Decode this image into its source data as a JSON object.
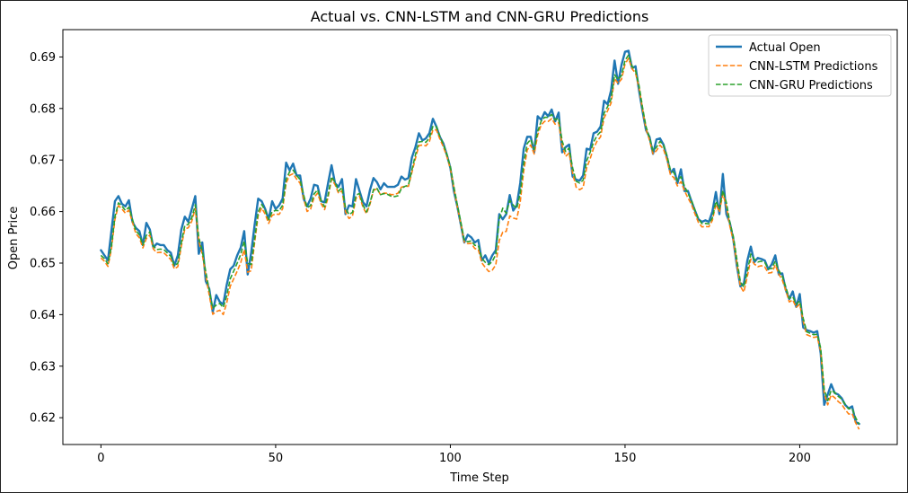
{
  "chart_data": {
    "type": "line",
    "title": "Actual vs. CNN-LSTM and CNN-GRU Predictions",
    "xlabel": "Time Step",
    "ylabel": "Open Price",
    "xlim": [
      -10.9,
      227.9
    ],
    "ylim": [
      0.6148,
      0.6953
    ],
    "x_ticks": [
      0,
      50,
      100,
      150,
      200
    ],
    "y_ticks": [
      0.62,
      0.63,
      0.64,
      0.65,
      0.66,
      0.67,
      0.68,
      0.69
    ],
    "legend_position": "upper-right",
    "grid": false,
    "series": [
      {
        "name": "Actual Open",
        "color": "#1f77b4",
        "style": "solid",
        "keypoints": [
          [
            0,
            0.6525
          ],
          [
            2,
            0.6505
          ],
          [
            4,
            0.662
          ],
          [
            5,
            0.663
          ],
          [
            6,
            0.6615
          ],
          [
            7,
            0.661
          ],
          [
            8,
            0.6622
          ],
          [
            9,
            0.658
          ],
          [
            10,
            0.6568
          ],
          [
            11,
            0.6562
          ],
          [
            12,
            0.6535
          ],
          [
            13,
            0.6578
          ],
          [
            14,
            0.6565
          ],
          [
            15,
            0.653
          ],
          [
            16,
            0.6538
          ],
          [
            17,
            0.6535
          ],
          [
            18,
            0.6535
          ],
          [
            19,
            0.6525
          ],
          [
            20,
            0.652
          ],
          [
            21,
            0.6495
          ],
          [
            22,
            0.6515
          ],
          [
            23,
            0.6565
          ],
          [
            24,
            0.659
          ],
          [
            25,
            0.658
          ],
          [
            26,
            0.6605
          ],
          [
            27,
            0.663
          ],
          [
            28,
            0.6518
          ],
          [
            29,
            0.654
          ],
          [
            30,
            0.6465
          ],
          [
            31,
            0.645
          ],
          [
            32,
            0.6405
          ],
          [
            33,
            0.6438
          ],
          [
            34,
            0.6425
          ],
          [
            35,
            0.642
          ],
          [
            36,
            0.6458
          ],
          [
            37,
            0.6488
          ],
          [
            38,
            0.6495
          ],
          [
            39,
            0.6515
          ],
          [
            40,
            0.653
          ],
          [
            41,
            0.6562
          ],
          [
            42,
            0.6478
          ],
          [
            43,
            0.652
          ],
          [
            44,
            0.6575
          ],
          [
            45,
            0.6625
          ],
          [
            46,
            0.662
          ],
          [
            47,
            0.6605
          ],
          [
            48,
            0.6585
          ],
          [
            49,
            0.662
          ],
          [
            50,
            0.6605
          ],
          [
            51,
            0.6612
          ],
          [
            52,
            0.6625
          ],
          [
            53,
            0.6695
          ],
          [
            54,
            0.668
          ],
          [
            55,
            0.6693
          ],
          [
            56,
            0.667
          ],
          [
            57,
            0.667
          ],
          [
            58,
            0.6625
          ],
          [
            59,
            0.661
          ],
          [
            60,
            0.6625
          ],
          [
            61,
            0.6652
          ],
          [
            62,
            0.665
          ],
          [
            63,
            0.662
          ],
          [
            64,
            0.6618
          ],
          [
            65,
            0.6655
          ],
          [
            66,
            0.669
          ],
          [
            67,
            0.6655
          ],
          [
            68,
            0.6648
          ],
          [
            69,
            0.6663
          ],
          [
            70,
            0.6595
          ],
          [
            71,
            0.6612
          ],
          [
            72,
            0.661
          ],
          [
            73,
            0.6663
          ],
          [
            74,
            0.664
          ],
          [
            75,
            0.6618
          ],
          [
            76,
            0.661
          ],
          [
            77,
            0.6642
          ],
          [
            78,
            0.6665
          ],
          [
            79,
            0.6657
          ],
          [
            80,
            0.6643
          ],
          [
            81,
            0.6655
          ],
          [
            82,
            0.6648
          ],
          [
            83,
            0.6648
          ],
          [
            84,
            0.6648
          ],
          [
            85,
            0.6652
          ],
          [
            86,
            0.6668
          ],
          [
            87,
            0.6662
          ],
          [
            88,
            0.6665
          ],
          [
            89,
            0.6705
          ],
          [
            90,
            0.6725
          ],
          [
            91,
            0.6752
          ],
          [
            92,
            0.6738
          ],
          [
            93,
            0.6742
          ],
          [
            94,
            0.6752
          ],
          [
            95,
            0.678
          ],
          [
            96,
            0.6765
          ],
          [
            97,
            0.6745
          ],
          [
            98,
            0.6732
          ],
          [
            99,
            0.671
          ],
          [
            100,
            0.6685
          ],
          [
            101,
            0.664
          ],
          [
            102,
            0.661
          ],
          [
            103,
            0.6575
          ],
          [
            104,
            0.654
          ],
          [
            105,
            0.6555
          ],
          [
            106,
            0.655
          ],
          [
            107,
            0.654
          ],
          [
            108,
            0.6545
          ],
          [
            109,
            0.6505
          ],
          [
            110,
            0.6515
          ],
          [
            111,
            0.65
          ],
          [
            112,
            0.6515
          ],
          [
            113,
            0.6525
          ],
          [
            114,
            0.6595
          ],
          [
            115,
            0.6585
          ],
          [
            116,
            0.6595
          ],
          [
            117,
            0.6632
          ],
          [
            118,
            0.6602
          ],
          [
            119,
            0.6612
          ],
          [
            120,
            0.6655
          ],
          [
            121,
            0.6722
          ],
          [
            122,
            0.6745
          ],
          [
            123,
            0.6745
          ],
          [
            124,
            0.6715
          ],
          [
            125,
            0.6785
          ],
          [
            126,
            0.6778
          ],
          [
            127,
            0.6793
          ],
          [
            128,
            0.6785
          ],
          [
            129,
            0.6798
          ],
          [
            130,
            0.6775
          ],
          [
            131,
            0.6792
          ],
          [
            132,
            0.6715
          ],
          [
            133,
            0.6725
          ],
          [
            134,
            0.673
          ],
          [
            135,
            0.6668
          ],
          [
            136,
            0.6662
          ],
          [
            137,
            0.666
          ],
          [
            138,
            0.667
          ],
          [
            139,
            0.6722
          ],
          [
            140,
            0.672
          ],
          [
            141,
            0.6752
          ],
          [
            142,
            0.6755
          ],
          [
            143,
            0.6765
          ],
          [
            144,
            0.6815
          ],
          [
            145,
            0.6808
          ],
          [
            146,
            0.6835
          ],
          [
            147,
            0.6893
          ],
          [
            148,
            0.6848
          ],
          [
            149,
            0.6885
          ],
          [
            150,
            0.691
          ],
          [
            151,
            0.6912
          ],
          [
            152,
            0.6878
          ],
          [
            153,
            0.6882
          ],
          [
            154,
            0.6835
          ],
          [
            155,
            0.6795
          ],
          [
            156,
            0.6758
          ],
          [
            157,
            0.6745
          ],
          [
            158,
            0.6712
          ],
          [
            159,
            0.674
          ],
          [
            160,
            0.6742
          ],
          [
            161,
            0.673
          ],
          [
            162,
            0.6705
          ],
          [
            163,
            0.6675
          ],
          [
            164,
            0.6683
          ],
          [
            165,
            0.6655
          ],
          [
            166,
            0.6682
          ],
          [
            167,
            0.664
          ],
          [
            168,
            0.664
          ],
          [
            169,
            0.662
          ],
          [
            170,
            0.6602
          ],
          [
            171,
            0.6585
          ],
          [
            172,
            0.658
          ],
          [
            173,
            0.6583
          ],
          [
            174,
            0.658
          ],
          [
            175,
            0.66
          ],
          [
            176,
            0.6638
          ],
          [
            177,
            0.6595
          ],
          [
            178,
            0.6673
          ],
          [
            179,
            0.6595
          ],
          [
            180,
            0.6578
          ],
          [
            181,
            0.6545
          ],
          [
            182,
            0.6495
          ],
          [
            183,
            0.6455
          ],
          [
            184,
            0.646
          ],
          [
            185,
            0.6505
          ],
          [
            186,
            0.6532
          ],
          [
            187,
            0.6502
          ],
          [
            188,
            0.651
          ],
          [
            189,
            0.6508
          ],
          [
            190,
            0.6505
          ],
          [
            191,
            0.6488
          ],
          [
            192,
            0.6498
          ],
          [
            193,
            0.6515
          ],
          [
            194,
            0.6478
          ],
          [
            195,
            0.648
          ],
          [
            196,
            0.6448
          ],
          [
            197,
            0.643
          ],
          [
            198,
            0.6445
          ],
          [
            199,
            0.6415
          ],
          [
            200,
            0.644
          ],
          [
            201,
            0.6375
          ],
          [
            202,
            0.637
          ],
          [
            203,
            0.6368
          ],
          [
            204,
            0.6365
          ],
          [
            205,
            0.6368
          ],
          [
            206,
            0.6325
          ],
          [
            207,
            0.6225
          ],
          [
            208,
            0.6245
          ],
          [
            209,
            0.6265
          ],
          [
            210,
            0.6248
          ],
          [
            211,
            0.6245
          ],
          [
            212,
            0.6238
          ],
          [
            213,
            0.6225
          ],
          [
            214,
            0.6218
          ],
          [
            215,
            0.6222
          ],
          [
            216,
            0.6192
          ],
          [
            217,
            0.6188
          ]
        ]
      },
      {
        "name": "CNN-LSTM Predictions",
        "color": "#ff7f0e",
        "style": "dashed",
        "offsets": [
          [
            0,
            -0.0015
          ],
          [
            30,
            -0.0015
          ],
          [
            32,
            -0.002
          ],
          [
            42,
            -0.0025
          ],
          [
            44,
            -0.0015
          ],
          [
            60,
            -0.0015
          ],
          [
            68,
            -0.0015
          ],
          [
            70,
            -0.002
          ],
          [
            80,
            -0.0015
          ],
          [
            90,
            -0.0015
          ],
          [
            95,
            -0.0012
          ],
          [
            100,
            -0.001
          ],
          [
            105,
            -0.0012
          ],
          [
            110,
            -0.002
          ],
          [
            113,
            -0.0025
          ],
          [
            116,
            -0.003
          ],
          [
            118,
            -0.0025
          ],
          [
            125,
            -0.0012
          ],
          [
            135,
            -0.0015
          ],
          [
            138,
            -0.002
          ],
          [
            145,
            -0.0015
          ],
          [
            150,
            -0.0015
          ],
          [
            155,
            -0.001
          ],
          [
            165,
            -0.0015
          ],
          [
            175,
            -0.001
          ],
          [
            185,
            -0.0015
          ],
          [
            195,
            -0.0012
          ],
          [
            205,
            -0.001
          ],
          [
            210,
            -0.0015
          ],
          [
            217,
            -0.0012
          ]
        ]
      },
      {
        "name": "CNN-GRU Predictions",
        "color": "#2ca02c",
        "style": "dashed",
        "offsets": [
          [
            0,
            -0.001
          ],
          [
            30,
            -0.0008
          ],
          [
            60,
            -0.0008
          ],
          [
            80,
            -0.0015
          ],
          [
            85,
            -0.002
          ],
          [
            90,
            -0.0008
          ],
          [
            95,
            -0.0005
          ],
          [
            110,
            -0.001
          ],
          [
            113,
            -0.0005
          ],
          [
            114,
            0.0015
          ],
          [
            115,
            0.0018
          ],
          [
            116,
            0.0005
          ],
          [
            120,
            -0.0005
          ],
          [
            135,
            -0.0005
          ],
          [
            150,
            -0.0008
          ],
          [
            160,
            -0.0005
          ],
          [
            175,
            -0.0005
          ],
          [
            190,
            -0.0005
          ],
          [
            200,
            -0.0005
          ],
          [
            210,
            -0.0005
          ],
          [
            217,
            -0.0002
          ]
        ]
      }
    ]
  }
}
